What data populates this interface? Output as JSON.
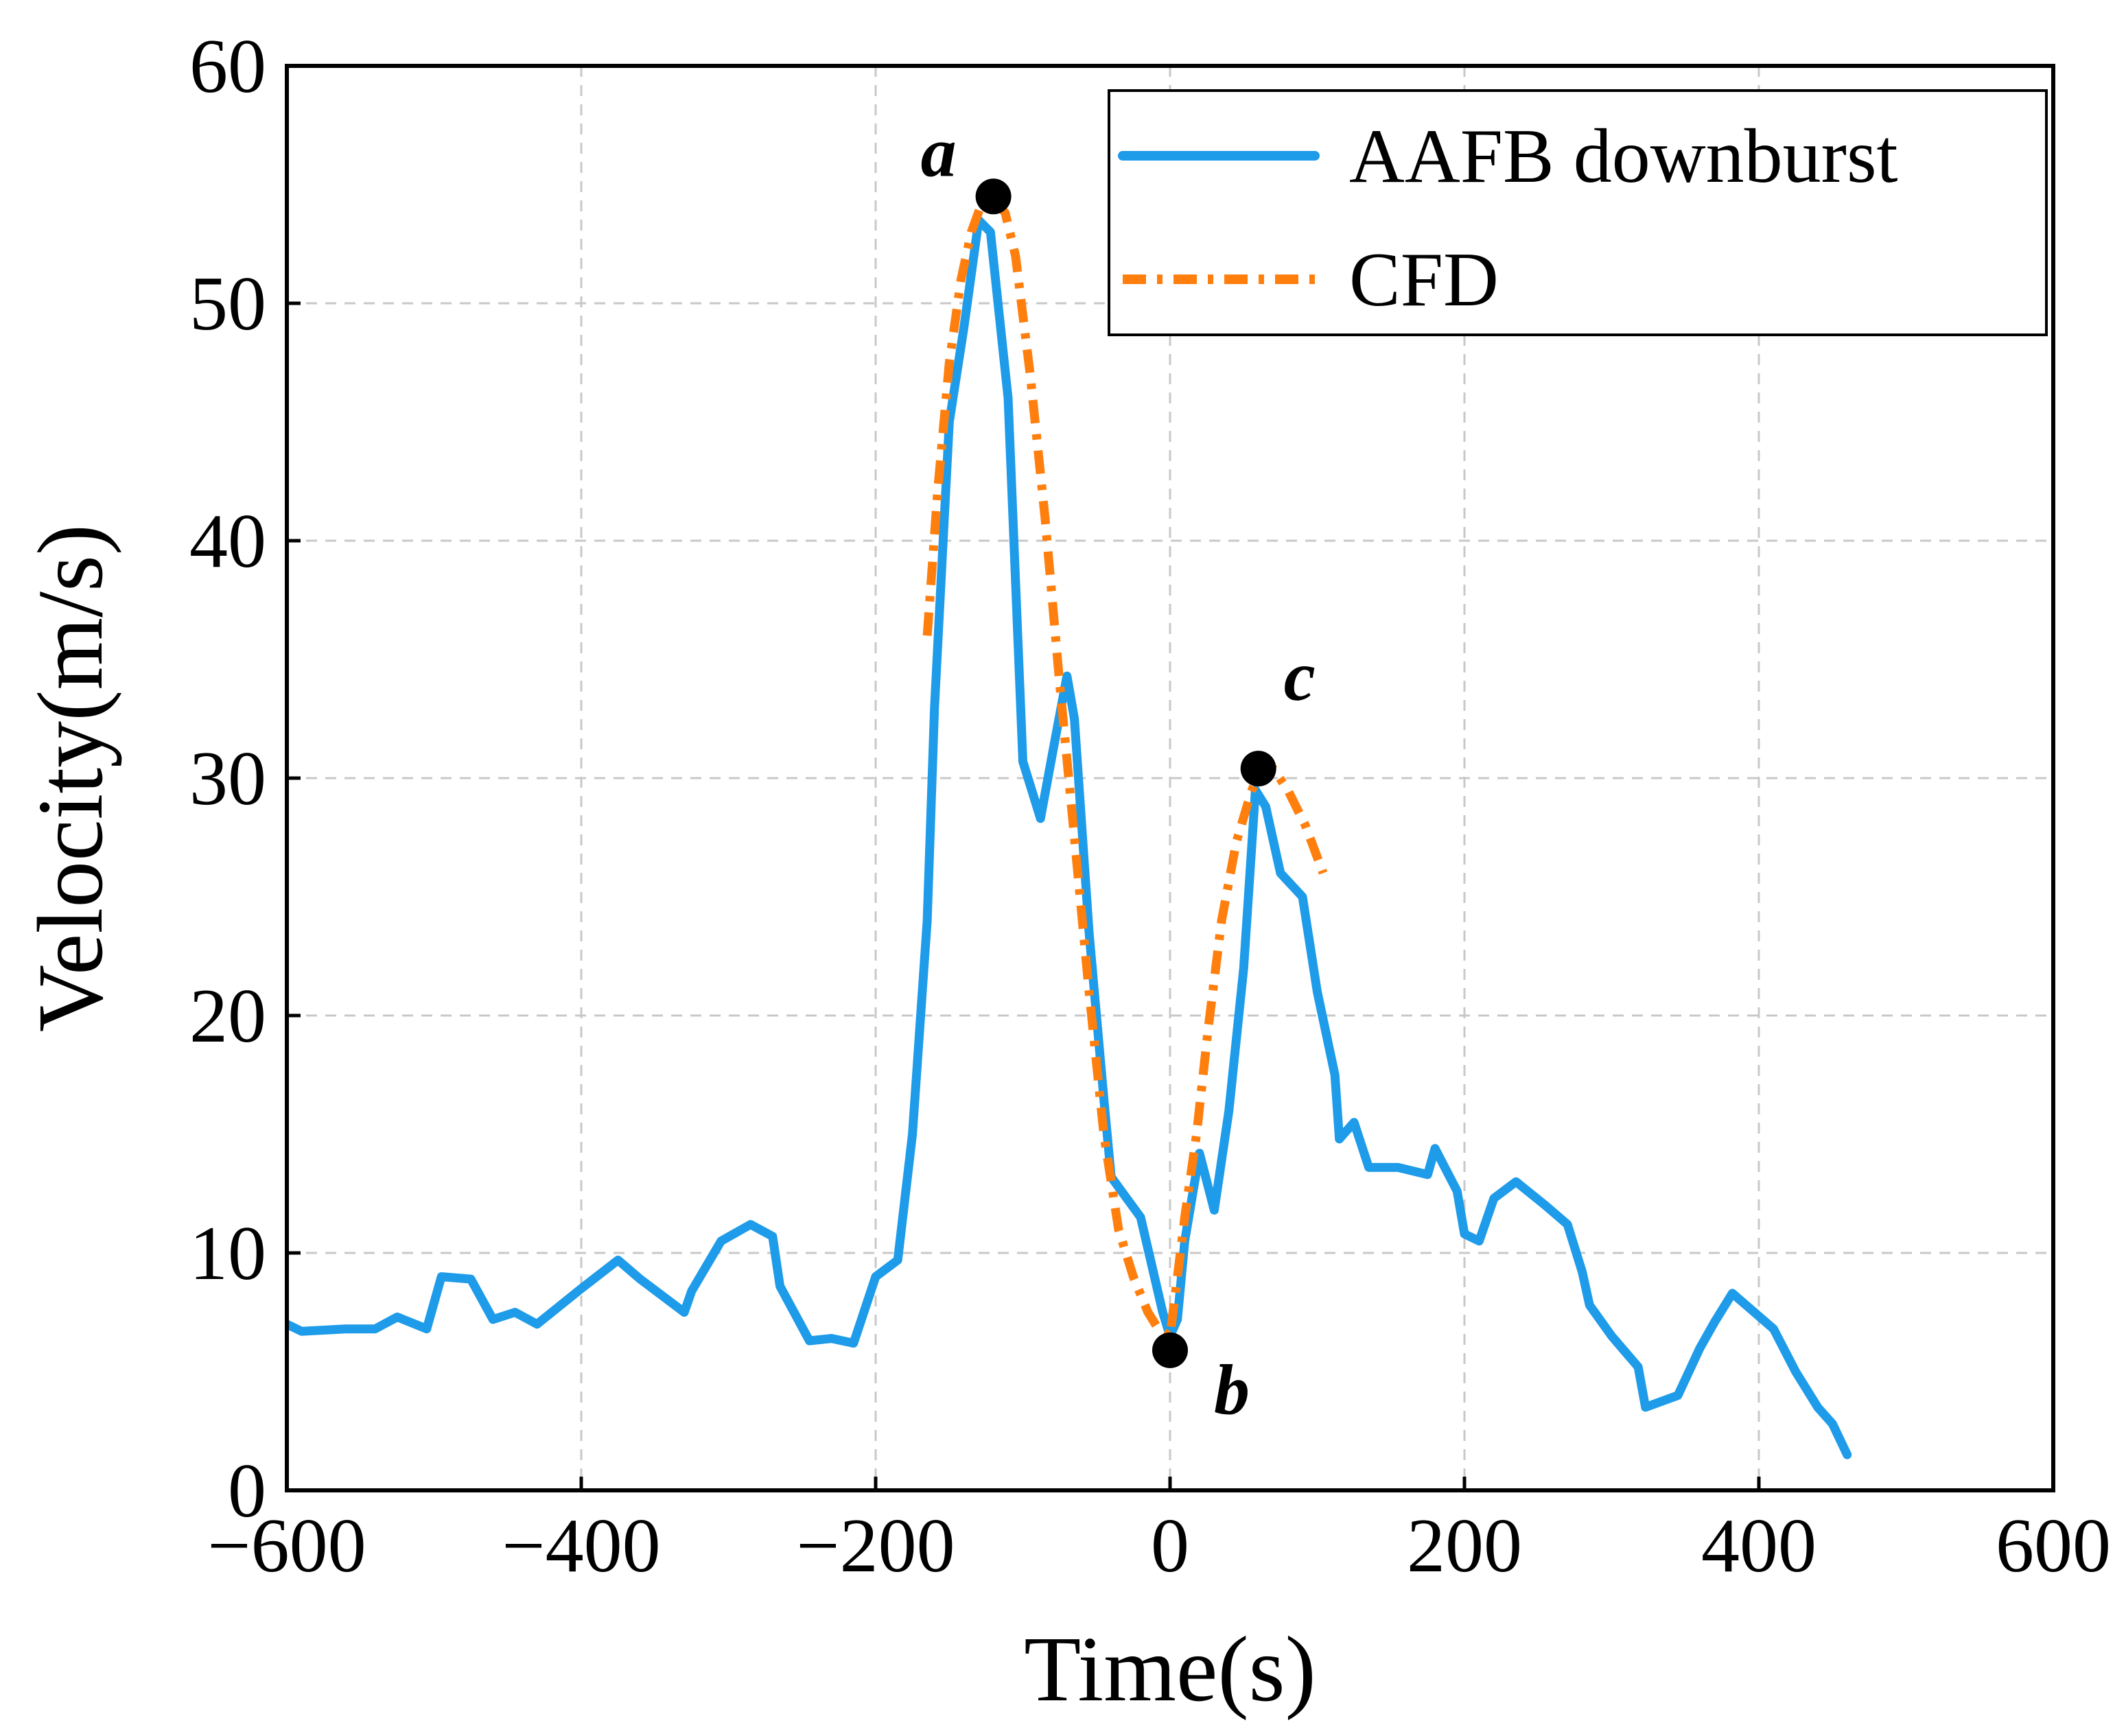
{
  "chart_data": {
    "type": "line",
    "title": "",
    "xlabel": "Time(s)",
    "ylabel": "Velocity(m/s)",
    "xlim": [
      -600,
      600
    ],
    "ylim": [
      0,
      60
    ],
    "xticks": [
      -600,
      -400,
      -200,
      0,
      200,
      400,
      600
    ],
    "xtick_labels": [
      "−600",
      "−400",
      "−200",
      "0",
      "200",
      "400",
      "600"
    ],
    "yticks": [
      0,
      10,
      20,
      30,
      40,
      50,
      60
    ],
    "ytick_labels": [
      "0",
      "10",
      "20",
      "30",
      "40",
      "50",
      "60"
    ],
    "grid": true,
    "legend_position": "top-right",
    "series": [
      {
        "name": "AAFB downburst",
        "color": "#1E9BE9",
        "style": "solid",
        "x": [
          -600,
          -590,
          -560,
          -540,
          -525,
          -505,
          -495,
          -475,
          -460,
          -445,
          -430,
          -400,
          -375,
          -360,
          -330,
          -325,
          -305,
          -285,
          -270,
          -265,
          -245,
          -230,
          -215,
          -200,
          -185,
          -175,
          -165,
          -160,
          -150,
          -140,
          -130,
          -122,
          -110,
          -100,
          -88,
          -80,
          -70,
          -65,
          -55,
          -45,
          -40,
          -20,
          -5,
          0,
          5,
          10,
          20,
          30,
          40,
          50,
          58,
          65,
          75,
          90,
          100,
          112,
          115,
          125,
          135,
          155,
          175,
          180,
          195,
          200,
          210,
          220,
          235,
          255,
          270,
          280,
          285,
          300,
          318,
          323,
          345,
          360,
          370,
          382,
          410,
          425,
          440,
          450,
          460
        ],
        "y": [
          7.0,
          6.7,
          6.8,
          6.8,
          7.3,
          6.8,
          9.0,
          8.9,
          7.2,
          7.5,
          7.0,
          8.5,
          9.7,
          8.9,
          7.5,
          8.4,
          10.5,
          11.2,
          10.7,
          8.6,
          6.3,
          6.4,
          6.2,
          9.0,
          9.7,
          15.0,
          24.0,
          33.0,
          45.0,
          49.0,
          53.5,
          53.0,
          46.0,
          30.7,
          28.3,
          31.0,
          34.3,
          32.5,
          23.5,
          16.5,
          13.2,
          11.5,
          7.5,
          6.5,
          7.2,
          10.5,
          14.2,
          11.8,
          16.0,
          22.0,
          29.5,
          28.8,
          26.0,
          25.0,
          21.0,
          17.5,
          14.8,
          15.5,
          13.6,
          13.6,
          13.3,
          14.4,
          12.6,
          10.8,
          10.5,
          12.3,
          13.0,
          12.0,
          11.2,
          9.2,
          7.8,
          6.5,
          5.2,
          3.5,
          4.0,
          6.0,
          7.1,
          8.3,
          6.8,
          5.0,
          3.5,
          2.8,
          1.5
        ]
      },
      {
        "name": "CFD",
        "color": "#FF7F0E",
        "style": "dash-dot",
        "x": [
          -165,
          -158,
          -150,
          -142,
          -135,
          -128,
          -120,
          -112,
          -105,
          -95,
          -85,
          -75,
          -65,
          -55,
          -45,
          -35,
          -25,
          -15,
          -8,
          -3,
          0,
          4,
          10,
          18,
          26,
          35,
          45,
          55,
          62,
          70,
          80,
          92,
          104
        ],
        "y": [
          36.0,
          42.0,
          47.5,
          51.0,
          53.0,
          54.2,
          54.5,
          53.8,
          52.0,
          47.0,
          41.0,
          34.0,
          27.5,
          21.0,
          15.0,
          11.0,
          9.0,
          7.5,
          6.8,
          6.6,
          6.5,
          8.5,
          11.5,
          15.0,
          19.5,
          24.0,
          27.3,
          29.4,
          30.5,
          30.4,
          29.5,
          28.0,
          26.0
        ]
      }
    ],
    "markers": [
      {
        "label": "a",
        "x": -120,
        "y": 54.5,
        "label_pos": "upper-left"
      },
      {
        "label": "b",
        "x": 0,
        "y": 5.9,
        "label_pos": "lower-right"
      },
      {
        "label": "c",
        "x": 60,
        "y": 30.4,
        "label_pos": "upper-right"
      }
    ]
  }
}
